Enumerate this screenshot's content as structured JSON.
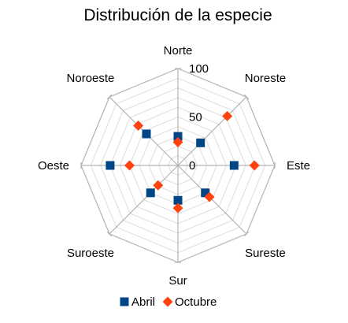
{
  "chart_data": {
    "type": "radar",
    "title": "Distribución de la especie",
    "axes": [
      "Norte",
      "Noreste",
      "Este",
      "Sureste",
      "Sur",
      "Suroeste",
      "Oeste",
      "Noroeste"
    ],
    "rlim": [
      0,
      100
    ],
    "ticks": [
      "0",
      "50",
      "100"
    ],
    "tick_values": [
      0,
      50,
      100
    ],
    "grid": true,
    "legend_position": "bottom",
    "series": [
      {
        "name": "Abril",
        "marker": "square",
        "color": "#004586",
        "values": [
          30,
          33,
          58,
          40,
          36,
          40,
          70,
          46
        ]
      },
      {
        "name": "Octubre",
        "marker": "diamond",
        "color": "#ff420e",
        "values": [
          24,
          72,
          79,
          46,
          44,
          29,
          50,
          58
        ]
      }
    ]
  }
}
